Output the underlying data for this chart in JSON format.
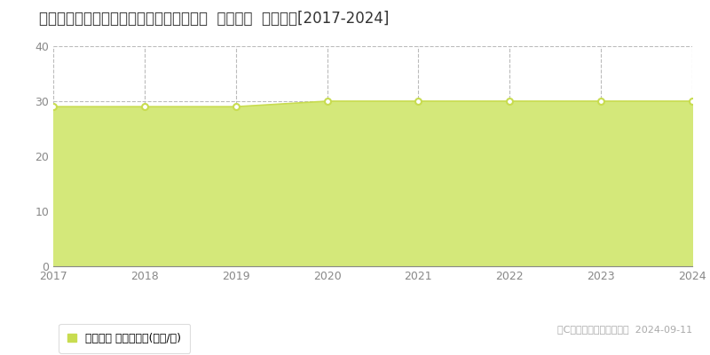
{
  "title": "新潟県新潟市西区小针４丁目７３０番５外  地価公示  地価推移[2017-2024]",
  "years": [
    2017,
    2018,
    2019,
    2020,
    2021,
    2022,
    2023,
    2024
  ],
  "values": [
    29,
    29,
    29,
    30,
    30,
    30,
    30,
    30
  ],
  "ylim": [
    0,
    40
  ],
  "yticks": [
    0,
    10,
    20,
    30,
    40
  ],
  "line_color": "#c8dc50",
  "fill_color": "#d4e87a",
  "marker_face": "#ffffff",
  "bg_color": "#ffffff",
  "plot_bg_color": "#ffffff",
  "grid_color": "#bbbbbb",
  "legend_label": "地価公示 平均嵪単価(万円/嵪)",
  "copyright_text": "（C）土地価格ドットコム  2024-09-11",
  "title_fontsize": 12,
  "axis_fontsize": 9,
  "legend_fontsize": 9,
  "copyright_fontsize": 8
}
